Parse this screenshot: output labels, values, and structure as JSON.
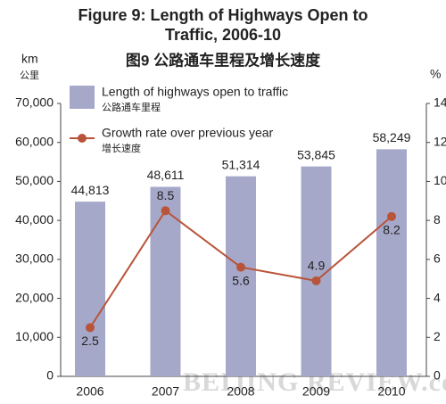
{
  "chart_data": {
    "type": "bar",
    "title": "Figure 9: Length of Highways Open to Traffic, 2006-10",
    "subtitle": "图9  公路通车里程及增长速度",
    "y_label": "km",
    "y_label_cn": "公里",
    "y2_label": "%",
    "watermark": "BEIJING REVIEW.com.cn",
    "categories": [
      "2006",
      "2007",
      "2008",
      "2009",
      "2010"
    ],
    "ylim": [
      0,
      70000
    ],
    "yticks": [
      0,
      {
        "value": 10000,
        "label": "10,000"
      },
      {
        "value": 20000,
        "label": "20,000"
      },
      {
        "value": 30000,
        "label": "30,000"
      },
      {
        "value": 40000,
        "label": "40,000"
      },
      {
        "value": 50000,
        "label": "50,000"
      },
      {
        "value": 60000,
        "label": "60,000"
      },
      {
        "value": 70000,
        "label": "70,000"
      }
    ],
    "y2lim": [
      0,
      14
    ],
    "y2ticks": [
      0,
      2,
      4,
      6,
      8,
      10,
      12,
      14
    ],
    "series": [
      {
        "name": "Length of highways open to traffic",
        "name_cn": "公路通车里程",
        "type": "bar",
        "color": "#a6a8c9",
        "values": [
          44813,
          48611,
          51314,
          53845,
          58249
        ],
        "value_labels": [
          "44,813",
          "48,611",
          "51,314",
          "53,845",
          "58,249"
        ]
      },
      {
        "name": "Growth rate over previous year",
        "name_cn": "增长速度",
        "type": "line",
        "axis": "y2",
        "color": "#b8543a",
        "values": [
          2.5,
          8.5,
          5.6,
          4.9,
          8.2
        ]
      }
    ]
  }
}
